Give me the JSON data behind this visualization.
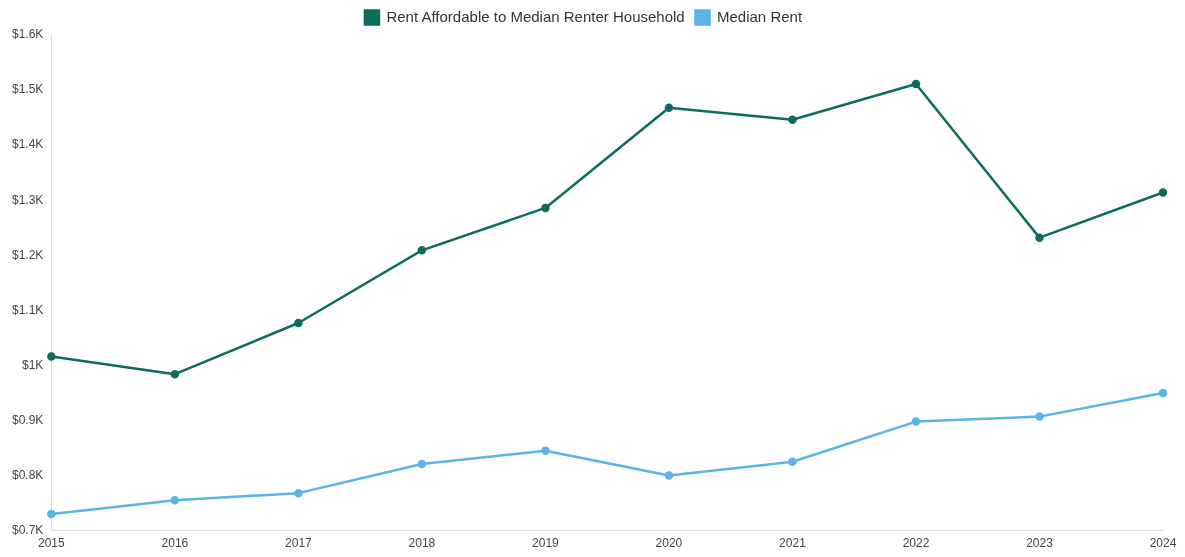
{
  "chart_data": {
    "type": "line",
    "categories": [
      "2015",
      "2016",
      "2017",
      "2018",
      "2019",
      "2020",
      "2021",
      "2022",
      "2023",
      "2024"
    ],
    "series": [
      {
        "name": "Rent Affordable to Median Renter Household",
        "color": "#0e6b5e",
        "values": [
          1016,
          984,
          1077,
          1209,
          1286,
          1468,
          1446,
          1511,
          1232,
          1314
        ]
      },
      {
        "name": "Median Rent",
        "color": "#5ab4e5",
        "values": [
          730,
          755,
          768,
          821,
          845,
          800,
          825,
          898,
          907,
          950
        ]
      }
    ],
    "ylim": [
      700,
      1600
    ],
    "yticks": [
      {
        "value": 700,
        "label": "$0.7K"
      },
      {
        "value": 800,
        "label": "$0.8K"
      },
      {
        "value": 900,
        "label": "$0.9K"
      },
      {
        "value": 1000,
        "label": "$1K"
      },
      {
        "value": 1100,
        "label": "$1.1K"
      },
      {
        "value": 1200,
        "label": "$1.2K"
      },
      {
        "value": 1300,
        "label": "$1.3K"
      },
      {
        "value": 1400,
        "label": "$1.4K"
      },
      {
        "value": 1500,
        "label": "$1.5K"
      },
      {
        "value": 1600,
        "label": "$1.6K"
      }
    ],
    "grid": false,
    "legend": "top",
    "marker": "circle",
    "line_style": "solid"
  }
}
